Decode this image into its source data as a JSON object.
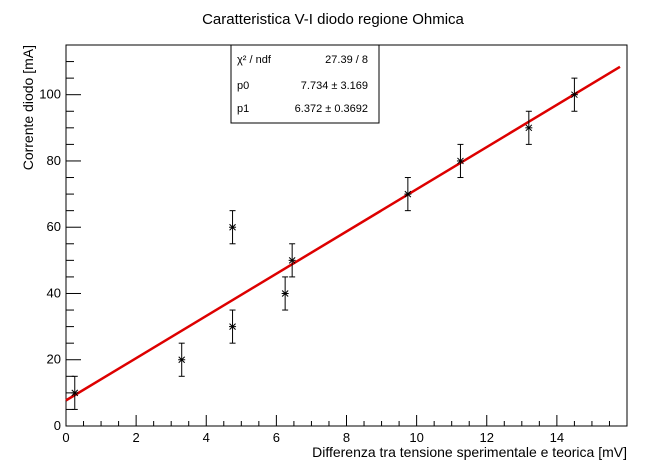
{
  "chart_data": {
    "type": "scatter",
    "title": "Caratteristica V-I diodo regione Ohmica",
    "xlabel": "Differenza tra tensione sperimentale e teorica [mV]",
    "ylabel": "Corrente diodo [mA]",
    "xlim": [
      0,
      16
    ],
    "ylim": [
      0,
      115
    ],
    "xticks": [
      0,
      2,
      4,
      6,
      8,
      10,
      12,
      14
    ],
    "yticks": [
      0,
      20,
      40,
      60,
      80,
      100
    ],
    "grid": false,
    "points": [
      {
        "x": 0.25,
        "y": 10,
        "xerr": 0.1,
        "yerr": 5
      },
      {
        "x": 3.3,
        "y": 20,
        "xerr": 0.1,
        "yerr": 5
      },
      {
        "x": 4.75,
        "y": 30,
        "xerr": 0.1,
        "yerr": 5
      },
      {
        "x": 4.75,
        "y": 60,
        "xerr": 0.1,
        "yerr": 5
      },
      {
        "x": 6.25,
        "y": 40,
        "xerr": 0.1,
        "yerr": 5
      },
      {
        "x": 6.45,
        "y": 50,
        "xerr": 0.1,
        "yerr": 5
      },
      {
        "x": 9.75,
        "y": 70,
        "xerr": 0.1,
        "yerr": 5
      },
      {
        "x": 11.25,
        "y": 80,
        "xerr": 0.1,
        "yerr": 5
      },
      {
        "x": 13.2,
        "y": 90,
        "xerr": 0.1,
        "yerr": 5
      },
      {
        "x": 14.5,
        "y": 100,
        "xerr": 0.1,
        "yerr": 5
      }
    ],
    "fit": {
      "function": "p0 + p1*x",
      "x_range": [
        0,
        15.8
      ],
      "color": "#dd0000",
      "stats": [
        {
          "label": "χ² / ndf",
          "value": "27.39 / 8"
        },
        {
          "label": "p0",
          "value": "7.734 ± 3.169"
        },
        {
          "label": "p1",
          "value": "6.372 ± 0.3692"
        }
      ],
      "p0": 7.734,
      "p1": 6.372
    }
  }
}
